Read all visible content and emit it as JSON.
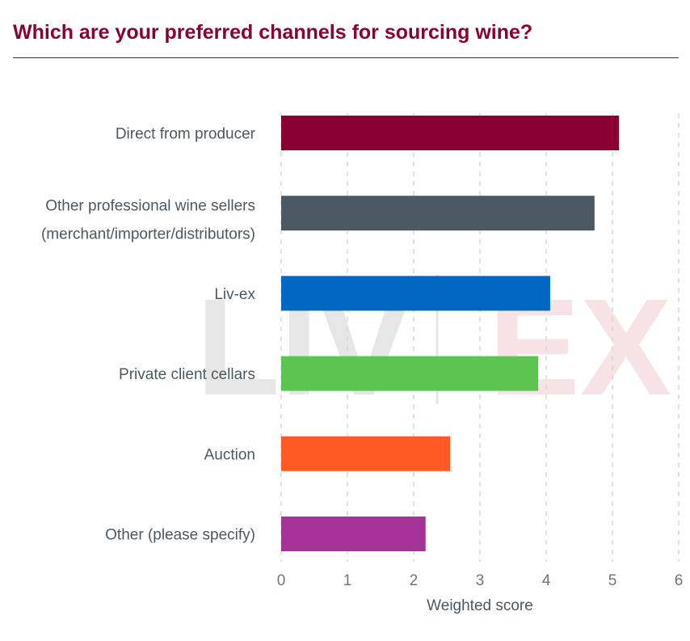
{
  "title": "Which are your preferred channels for sourcing wine?",
  "watermark": {
    "left": "LIV",
    "right": "EX"
  },
  "chart_data": {
    "type": "bar",
    "orientation": "horizontal",
    "categories": [
      [
        "Direct from producer"
      ],
      [
        "Other professional wine sellers",
        "(merchant/importer/distributors)"
      ],
      [
        "Liv-ex"
      ],
      [
        "Private client cellars"
      ],
      [
        "Auction"
      ],
      [
        "Other (please specify)"
      ]
    ],
    "values": [
      5.1,
      4.73,
      4.06,
      3.88,
      2.55,
      2.18
    ],
    "colors": [
      "#8b0033",
      "#4a5963",
      "#0068c4",
      "#5cc552",
      "#ff5a22",
      "#a33396"
    ],
    "xlabel": "Weighted score",
    "ylabel": "",
    "xlim": [
      0,
      6
    ],
    "xticks": [
      "0",
      "1",
      "2",
      "3",
      "4",
      "5",
      "6"
    ],
    "grid": "vertical-dashed",
    "legend": "none"
  }
}
